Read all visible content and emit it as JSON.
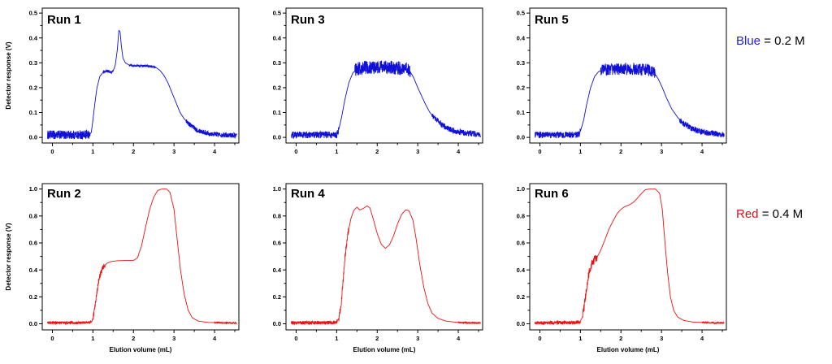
{
  "figure": {
    "legend": [
      {
        "label": "Blue",
        "suffix": " = 0.2 M",
        "color": "#2222dd"
      },
      {
        "label": "Red",
        "suffix": " = 0.4 M",
        "color": "#dd1111"
      }
    ]
  },
  "chart_data": [
    {
      "type": "line",
      "title": "Run 1",
      "row": "top",
      "color": "#1010d8",
      "xlabel": "",
      "ylabel": "Detector response (V)",
      "xlim": [
        -0.25,
        4.6
      ],
      "ylim": [
        0,
        0.5
      ],
      "xticks": [
        0,
        1,
        2,
        3,
        4
      ],
      "yticks": [
        0.0,
        0.1,
        0.2,
        0.3,
        0.4,
        0.5
      ],
      "points": [
        [
          -0.12,
          0.01
        ],
        [
          0.9,
          0.01
        ],
        [
          0.96,
          0.02
        ],
        [
          1.0,
          0.07
        ],
        [
          1.05,
          0.14
        ],
        [
          1.1,
          0.2
        ],
        [
          1.17,
          0.245
        ],
        [
          1.25,
          0.262
        ],
        [
          1.35,
          0.268
        ],
        [
          1.45,
          0.262
        ],
        [
          1.5,
          0.268
        ],
        [
          1.55,
          0.29
        ],
        [
          1.6,
          0.35
        ],
        [
          1.64,
          0.43
        ],
        [
          1.67,
          0.425
        ],
        [
          1.7,
          0.37
        ],
        [
          1.74,
          0.32
        ],
        [
          1.8,
          0.3
        ],
        [
          1.9,
          0.29
        ],
        [
          2.1,
          0.288
        ],
        [
          2.4,
          0.287
        ],
        [
          2.55,
          0.282
        ],
        [
          2.65,
          0.27
        ],
        [
          2.75,
          0.25
        ],
        [
          2.85,
          0.22
        ],
        [
          2.95,
          0.18
        ],
        [
          3.05,
          0.14
        ],
        [
          3.15,
          0.1
        ],
        [
          3.25,
          0.075
        ],
        [
          3.4,
          0.05
        ],
        [
          3.55,
          0.032
        ],
        [
          3.75,
          0.02
        ],
        [
          4.0,
          0.013
        ],
        [
          4.3,
          0.01
        ],
        [
          4.55,
          0.008
        ]
      ],
      "noise": [
        {
          "range": [
            -0.12,
            0.93
          ],
          "amp": 0.018
        },
        {
          "range": [
            1.25,
            1.5
          ],
          "amp": 0.006
        },
        {
          "range": [
            1.9,
            2.55
          ],
          "amp": 0.004
        },
        {
          "range": [
            3.3,
            4.55
          ],
          "amp": 0.01
        }
      ]
    },
    {
      "type": "line",
      "title": "Run 3",
      "row": "top",
      "color": "#1010d8",
      "xlabel": "",
      "ylabel": "",
      "xlim": [
        -0.25,
        4.6
      ],
      "ylim": [
        0,
        0.5
      ],
      "xticks": [
        0,
        1,
        2,
        3,
        4
      ],
      "yticks": [
        0.0,
        0.1,
        0.2,
        0.3,
        0.4,
        0.5
      ],
      "points": [
        [
          -0.12,
          0.01
        ],
        [
          1.0,
          0.01
        ],
        [
          1.05,
          0.03
        ],
        [
          1.12,
          0.08
        ],
        [
          1.2,
          0.15
        ],
        [
          1.3,
          0.22
        ],
        [
          1.4,
          0.26
        ],
        [
          1.5,
          0.275
        ],
        [
          1.7,
          0.28
        ],
        [
          2.0,
          0.282
        ],
        [
          2.4,
          0.28
        ],
        [
          2.7,
          0.278
        ],
        [
          2.8,
          0.268
        ],
        [
          2.9,
          0.24
        ],
        [
          3.0,
          0.2
        ],
        [
          3.1,
          0.165
        ],
        [
          3.2,
          0.13
        ],
        [
          3.3,
          0.1
        ],
        [
          3.45,
          0.072
        ],
        [
          3.6,
          0.05
        ],
        [
          3.8,
          0.032
        ],
        [
          4.0,
          0.022
        ],
        [
          4.3,
          0.015
        ],
        [
          4.55,
          0.012
        ]
      ],
      "noise": [
        {
          "range": [
            -0.12,
            1.05
          ],
          "amp": 0.014
        },
        {
          "range": [
            1.45,
            2.82
          ],
          "amp": 0.028
        },
        {
          "range": [
            3.35,
            4.55
          ],
          "amp": 0.012
        }
      ]
    },
    {
      "type": "line",
      "title": "Run 5",
      "row": "top",
      "color": "#1010d8",
      "xlabel": "",
      "ylabel": "",
      "xlim": [
        -0.25,
        4.6
      ],
      "ylim": [
        0,
        0.5
      ],
      "xticks": [
        0,
        1,
        2,
        3,
        4
      ],
      "yticks": [
        0.0,
        0.1,
        0.2,
        0.3,
        0.4,
        0.5
      ],
      "points": [
        [
          -0.12,
          0.01
        ],
        [
          0.95,
          0.01
        ],
        [
          1.0,
          0.025
        ],
        [
          1.08,
          0.07
        ],
        [
          1.15,
          0.13
        ],
        [
          1.25,
          0.2
        ],
        [
          1.35,
          0.245
        ],
        [
          1.45,
          0.265
        ],
        [
          1.6,
          0.272
        ],
        [
          1.9,
          0.275
        ],
        [
          2.3,
          0.275
        ],
        [
          2.7,
          0.272
        ],
        [
          2.82,
          0.26
        ],
        [
          2.92,
          0.235
        ],
        [
          3.02,
          0.2
        ],
        [
          3.12,
          0.16
        ],
        [
          3.25,
          0.115
        ],
        [
          3.4,
          0.08
        ],
        [
          3.55,
          0.055
        ],
        [
          3.75,
          0.035
        ],
        [
          4.0,
          0.022
        ],
        [
          4.3,
          0.015
        ],
        [
          4.55,
          0.012
        ]
      ],
      "noise": [
        {
          "range": [
            -0.12,
            1.0
          ],
          "amp": 0.013
        },
        {
          "range": [
            1.5,
            2.85
          ],
          "amp": 0.024
        },
        {
          "range": [
            3.45,
            4.55
          ],
          "amp": 0.012
        }
      ]
    },
    {
      "type": "line",
      "title": "Run 2",
      "row": "bottom",
      "color": "#ee1111",
      "xlabel": "Elution volume (mL)",
      "ylabel": "Detector response (V)",
      "xlim": [
        -0.25,
        4.6
      ],
      "ylim": [
        0,
        1.0
      ],
      "xticks": [
        0,
        1,
        2,
        3,
        4
      ],
      "yticks": [
        0.0,
        0.2,
        0.4,
        0.6,
        0.8,
        1.0
      ],
      "points": [
        [
          -0.12,
          0.008
        ],
        [
          0.92,
          0.008
        ],
        [
          0.98,
          0.02
        ],
        [
          1.03,
          0.08
        ],
        [
          1.08,
          0.2
        ],
        [
          1.13,
          0.3
        ],
        [
          1.18,
          0.37
        ],
        [
          1.25,
          0.42
        ],
        [
          1.35,
          0.45
        ],
        [
          1.45,
          0.462
        ],
        [
          1.6,
          0.468
        ],
        [
          1.8,
          0.47
        ],
        [
          2.0,
          0.47
        ],
        [
          2.1,
          0.49
        ],
        [
          2.2,
          0.58
        ],
        [
          2.3,
          0.72
        ],
        [
          2.4,
          0.85
        ],
        [
          2.5,
          0.94
        ],
        [
          2.6,
          0.99
        ],
        [
          2.7,
          1.0
        ],
        [
          2.82,
          1.0
        ],
        [
          2.9,
          0.975
        ],
        [
          3.0,
          0.85
        ],
        [
          3.08,
          0.62
        ],
        [
          3.16,
          0.4
        ],
        [
          3.25,
          0.22
        ],
        [
          3.35,
          0.1
        ],
        [
          3.45,
          0.045
        ],
        [
          3.6,
          0.02
        ],
        [
          3.85,
          0.01
        ],
        [
          4.2,
          0.007
        ],
        [
          4.55,
          0.006
        ]
      ],
      "noise": [
        {
          "range": [
            -0.12,
            0.96
          ],
          "amp": 0.01
        },
        {
          "range": [
            1.0,
            1.3
          ],
          "amp": 0.022
        },
        {
          "range": [
            4.0,
            4.55
          ],
          "amp": 0.005
        }
      ]
    },
    {
      "type": "line",
      "title": "Run 4",
      "row": "bottom",
      "color": "#ee1111",
      "xlabel": "Elution volume (mL)",
      "ylabel": "",
      "xlim": [
        -0.25,
        4.6
      ],
      "ylim": [
        0,
        1.0
      ],
      "xticks": [
        0,
        1,
        2,
        3,
        4
      ],
      "yticks": [
        0.0,
        0.2,
        0.4,
        0.6,
        0.8,
        1.0
      ],
      "points": [
        [
          -0.12,
          0.008
        ],
        [
          0.98,
          0.01
        ],
        [
          1.05,
          0.04
        ],
        [
          1.1,
          0.12
        ],
        [
          1.15,
          0.28
        ],
        [
          1.2,
          0.48
        ],
        [
          1.27,
          0.66
        ],
        [
          1.35,
          0.78
        ],
        [
          1.42,
          0.84
        ],
        [
          1.5,
          0.865
        ],
        [
          1.57,
          0.845
        ],
        [
          1.65,
          0.855
        ],
        [
          1.75,
          0.875
        ],
        [
          1.82,
          0.86
        ],
        [
          1.9,
          0.78
        ],
        [
          2.0,
          0.67
        ],
        [
          2.1,
          0.59
        ],
        [
          2.2,
          0.56
        ],
        [
          2.3,
          0.585
        ],
        [
          2.4,
          0.65
        ],
        [
          2.5,
          0.74
        ],
        [
          2.6,
          0.81
        ],
        [
          2.7,
          0.845
        ],
        [
          2.78,
          0.84
        ],
        [
          2.88,
          0.77
        ],
        [
          2.96,
          0.63
        ],
        [
          3.05,
          0.44
        ],
        [
          3.15,
          0.27
        ],
        [
          3.25,
          0.15
        ],
        [
          3.35,
          0.08
        ],
        [
          3.5,
          0.04
        ],
        [
          3.7,
          0.02
        ],
        [
          4.0,
          0.01
        ],
        [
          4.3,
          0.007
        ],
        [
          4.55,
          0.006
        ]
      ],
      "noise": [
        {
          "range": [
            -0.12,
            1.02
          ],
          "amp": 0.013
        },
        {
          "range": [
            1.05,
            1.3
          ],
          "amp": 0.028
        },
        {
          "range": [
            4.0,
            4.55
          ],
          "amp": 0.005
        }
      ]
    },
    {
      "type": "line",
      "title": "Run 6",
      "row": "bottom",
      "color": "#ee1111",
      "xlabel": "Elution volume (mL)",
      "ylabel": "",
      "xlim": [
        -0.25,
        4.6
      ],
      "ylim": [
        0,
        1.0
      ],
      "xticks": [
        0,
        1,
        2,
        3,
        4
      ],
      "yticks": [
        0.0,
        0.2,
        0.4,
        0.6,
        0.8,
        1.0
      ],
      "points": [
        [
          -0.12,
          0.008
        ],
        [
          0.98,
          0.01
        ],
        [
          1.05,
          0.05
        ],
        [
          1.1,
          0.14
        ],
        [
          1.15,
          0.26
        ],
        [
          1.2,
          0.36
        ],
        [
          1.27,
          0.44
        ],
        [
          1.35,
          0.48
        ],
        [
          1.42,
          0.5
        ],
        [
          1.5,
          0.545
        ],
        [
          1.6,
          0.62
        ],
        [
          1.7,
          0.7
        ],
        [
          1.8,
          0.76
        ],
        [
          1.9,
          0.815
        ],
        [
          2.0,
          0.85
        ],
        [
          2.1,
          0.87
        ],
        [
          2.2,
          0.882
        ],
        [
          2.3,
          0.9
        ],
        [
          2.4,
          0.93
        ],
        [
          2.5,
          0.965
        ],
        [
          2.6,
          0.995
        ],
        [
          2.7,
          1.0
        ],
        [
          2.85,
          1.0
        ],
        [
          2.95,
          0.97
        ],
        [
          3.02,
          0.85
        ],
        [
          3.08,
          0.62
        ],
        [
          3.15,
          0.38
        ],
        [
          3.22,
          0.2
        ],
        [
          3.3,
          0.1
        ],
        [
          3.4,
          0.05
        ],
        [
          3.55,
          0.025
        ],
        [
          3.8,
          0.012
        ],
        [
          4.2,
          0.008
        ],
        [
          4.55,
          0.006
        ]
      ],
      "noise": [
        {
          "range": [
            -0.12,
            1.0
          ],
          "amp": 0.013
        },
        {
          "range": [
            1.05,
            1.42
          ],
          "amp": 0.03
        },
        {
          "range": [
            4.0,
            4.55
          ],
          "amp": 0.005
        }
      ]
    }
  ]
}
